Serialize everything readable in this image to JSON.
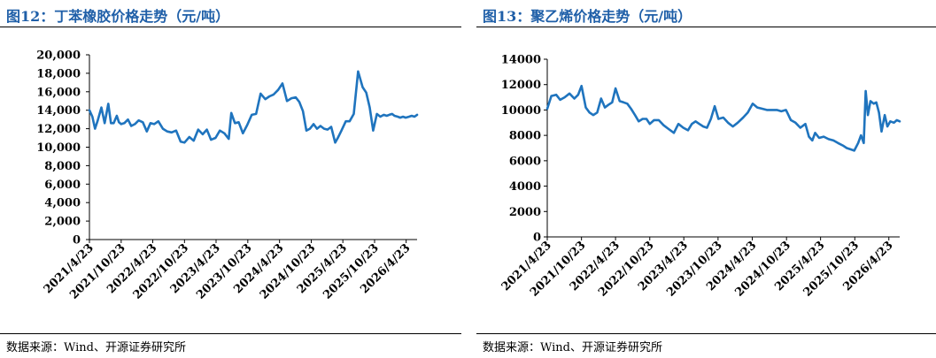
{
  "left": {
    "title": "图12：丁苯橡胶价格走势（元/吨）",
    "source": "数据来源：Wind、开源证券研究所"
  },
  "right": {
    "title": "图13：聚乙烯价格走势（元/吨）",
    "source": "数据来源：Wind、开源证券研究所"
  },
  "colors": {
    "line": "#1f74be",
    "title": "#1f5fa8",
    "axis": "#000000"
  },
  "chart_data": [
    {
      "type": "line",
      "title": "图12：丁苯橡胶价格走势（元/吨）",
      "xlabel": "",
      "ylabel": "",
      "ylim": [
        0,
        20000
      ],
      "yticks": [
        0,
        2000,
        4000,
        6000,
        8000,
        10000,
        12000,
        14000,
        16000,
        18000,
        20000
      ],
      "ytick_labels": [
        "0",
        "2,000",
        "4,000",
        "6,000",
        "8,000",
        "10,000",
        "12,000",
        "14,000",
        "16,000",
        "18,000",
        "20,000"
      ],
      "xtick_labels": [
        "2021/4/23",
        "2021/10/23",
        "2022/4/23",
        "2022/10/23",
        "2023/4/23",
        "2023/10/23",
        "2024/4/23",
        "2024/10/23",
        "2025/4/23",
        "2025/10/23",
        "2026/4/23"
      ],
      "grid": false,
      "series": [
        {
          "x": [
            "2021/4/23",
            "2021/5/10",
            "2021/5/25",
            "2021/6/10",
            "2021/7/1",
            "2021/7/20",
            "2021/8/10",
            "2021/8/25",
            "2021/9/10",
            "2021/9/28",
            "2021/10/10",
            "2021/10/23",
            "2021/11/10",
            "2021/12/1",
            "2021/12/20",
            "2022/1/10",
            "2022/2/1",
            "2022/2/25",
            "2022/3/20",
            "2022/4/10",
            "2022/5/1",
            "2022/5/25",
            "2022/6/20",
            "2022/7/15",
            "2022/8/10",
            "2022/9/5",
            "2022/10/1",
            "2022/10/23",
            "2022/11/20",
            "2022/12/15",
            "2023/1/10",
            "2023/2/5",
            "2023/3/1",
            "2023/3/25",
            "2023/4/20",
            "2023/5/15",
            "2023/6/10",
            "2023/7/5",
            "2023/7/20",
            "2023/8/10",
            "2023/9/1",
            "2023/9/25",
            "2023/10/20",
            "2023/11/15",
            "2023/12/10",
            "2024/1/5",
            "2024/2/1",
            "2024/2/25",
            "2024/3/20",
            "2024/4/15",
            "2024/5/10",
            "2024/6/5",
            "2024/7/1",
            "2024/7/25",
            "2024/8/15",
            "2024/9/5",
            "2024/9/25",
            "2024/10/15",
            "2024/11/5",
            "2024/11/25",
            "2024/12/15",
            "2025/1/5",
            "2025/1/25",
            "2025/2/15",
            "2025/3/10",
            "2025/3/25",
            "2025/4/15",
            "2025/5/10",
            "2025/6/1",
            "2025/6/25",
            "2025/7/20",
            "2025/8/15",
            "2025/9/5",
            "2025/9/25",
            "2025/10/15",
            "2025/11/5",
            "2025/11/25",
            "2025/12/15",
            "2026/1/1",
            "2026/1/15",
            "2026/2/1",
            "2026/2/15",
            "2026/3/5",
            "2026/3/20",
            "2026/4/5",
            "2026/4/20",
            "2026/5/10",
            "2026/5/25",
            "2026/6/10",
            "2026/6/25"
          ],
          "y": [
            14000,
            13300,
            12000,
            12900,
            14300,
            12600,
            14700,
            12600,
            12600,
            13400,
            12700,
            12500,
            12600,
            13000,
            12300,
            12500,
            12900,
            12700,
            11700,
            12600,
            12500,
            12800,
            12000,
            11700,
            11600,
            11800,
            10600,
            10500,
            11100,
            10700,
            11900,
            11400,
            11900,
            10800,
            11000,
            11800,
            11500,
            10900,
            13700,
            12600,
            12700,
            11500,
            12400,
            13500,
            13600,
            15800,
            15200,
            15500,
            15700,
            16200,
            16900,
            15000,
            15300,
            15400,
            14900,
            13900,
            11800,
            12000,
            12500,
            12000,
            12300,
            12000,
            11900,
            12200,
            10500,
            11000,
            11800,
            12800,
            12800,
            13600,
            18200,
            16500,
            15900,
            14300,
            11800,
            13600,
            13300,
            13500,
            13400,
            13500,
            13600,
            13400,
            13300,
            13200,
            13300,
            13200,
            13300,
            13400,
            13300,
            13500
          ]
        }
      ]
    },
    {
      "type": "line",
      "title": "图13：聚乙烯价格走势（元/吨）",
      "xlabel": "",
      "ylabel": "",
      "ylim": [
        0,
        14000
      ],
      "yticks": [
        0,
        2000,
        4000,
        6000,
        8000,
        10000,
        12000,
        14000
      ],
      "ytick_labels": [
        "0",
        "2000",
        "4000",
        "6000",
        "8000",
        "10000",
        "12000",
        "14000"
      ],
      "xtick_labels": [
        "2021/4/23",
        "2021/10/23",
        "2022/4/23",
        "2022/10/23",
        "2023/4/23",
        "2023/10/23",
        "2024/4/23",
        "2024/10/23",
        "2025/4/23",
        "2025/10/23",
        "2026/4/23"
      ],
      "grid": false,
      "series": [
        {
          "x": [
            "2021/4/23",
            "2021/5/15",
            "2021/6/10",
            "2021/7/1",
            "2021/7/25",
            "2021/8/20",
            "2021/9/15",
            "2021/10/5",
            "2021/10/23",
            "2021/11/15",
            "2021/12/5",
            "2021/12/25",
            "2022/1/15",
            "2022/2/5",
            "2022/2/25",
            "2022/3/15",
            "2022/4/5",
            "2022/4/23",
            "2022/5/15",
            "2022/6/5",
            "2022/6/25",
            "2022/7/15",
            "2022/8/5",
            "2022/8/25",
            "2022/9/15",
            "2022/10/5",
            "2022/10/23",
            "2022/11/15",
            "2022/12/10",
            "2023/1/5",
            "2023/2/1",
            "2023/3/1",
            "2023/3/25",
            "2023/4/20",
            "2023/5/15",
            "2023/6/5",
            "2023/6/25",
            "2023/7/15",
            "2023/8/5",
            "2023/8/25",
            "2023/9/15",
            "2023/10/5",
            "2023/10/25",
            "2023/11/20",
            "2023/12/15",
            "2024/1/10",
            "2024/2/5",
            "2024/3/5",
            "2024/3/30",
            "2024/4/25",
            "2024/5/20",
            "2024/6/15",
            "2024/7/10",
            "2024/8/5",
            "2024/9/1",
            "2024/9/25",
            "2024/10/20",
            "2024/11/15",
            "2024/12/10",
            "2025/1/5",
            "2025/2/1",
            "2025/2/20",
            "2025/3/10",
            "2025/3/25",
            "2025/4/15",
            "2025/5/10",
            "2025/6/5",
            "2025/7/1",
            "2025/7/25",
            "2025/8/20",
            "2025/9/10",
            "2025/9/30",
            "2025/10/20",
            "2025/11/10",
            "2025/11/25",
            "2025/12/10",
            "2025/12/20",
            "2026/1/1",
            "2026/1/15",
            "2026/2/1",
            "2026/2/15",
            "2026/3/1",
            "2026/3/15",
            "2026/4/1",
            "2026/4/15",
            "2026/5/1",
            "2026/5/20",
            "2026/6/5",
            "2026/6/20"
          ],
          "y": [
            10100,
            11100,
            11200,
            10800,
            11000,
            11300,
            10900,
            11200,
            11900,
            10200,
            9800,
            9600,
            9800,
            10900,
            10200,
            10400,
            10600,
            11700,
            10700,
            10600,
            10500,
            10100,
            9600,
            9100,
            9300,
            9300,
            8900,
            9200,
            9200,
            8800,
            8500,
            8200,
            8900,
            8600,
            8400,
            8900,
            9100,
            8900,
            8700,
            8600,
            9300,
            10300,
            9300,
            9400,
            9000,
            8700,
            9000,
            9400,
            9800,
            10500,
            10200,
            10100,
            10000,
            10000,
            10000,
            9900,
            10000,
            9200,
            9000,
            8600,
            8900,
            7900,
            7600,
            8200,
            7800,
            7900,
            7700,
            7600,
            7400,
            7200,
            7000,
            6900,
            6800,
            7400,
            8000,
            7400,
            11500,
            9600,
            10700,
            10500,
            10600,
            9800,
            8300,
            9600,
            8700,
            9100,
            9000,
            9200,
            9100
          ]
        }
      ]
    }
  ]
}
